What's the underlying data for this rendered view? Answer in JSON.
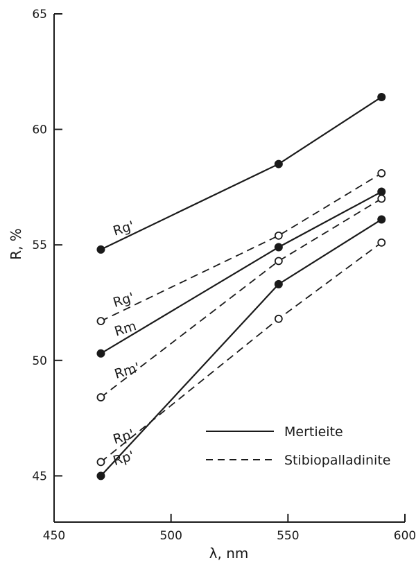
{
  "chart_data": {
    "type": "line",
    "xlabel": "λ, nm",
    "ylabel": "R, %",
    "xlim": [
      450,
      600
    ],
    "ylim": [
      43,
      65
    ],
    "xticks": [
      450,
      500,
      550,
      600
    ],
    "yticks": [
      45,
      50,
      55,
      60,
      65
    ],
    "grid": false,
    "legend_position": "bottom-right",
    "legend": [
      {
        "label": "Mertieite",
        "style": "solid"
      },
      {
        "label": "Stibiopalladinite",
        "style": "dashed"
      }
    ],
    "x": [
      470,
      546,
      590
    ],
    "series": [
      {
        "name": "Rg'",
        "group": "Mertieite",
        "style": "solid",
        "marker": "filled",
        "values": [
          54.8,
          58.5,
          61.4
        ]
      },
      {
        "name": "Rm",
        "group": "Mertieite",
        "style": "solid",
        "marker": "filled",
        "values": [
          50.3,
          54.9,
          57.3
        ]
      },
      {
        "name": "Rp'",
        "group": "Mertieite",
        "style": "solid",
        "marker": "filled",
        "values": [
          45.0,
          53.3,
          56.1
        ]
      },
      {
        "name": "Rg'",
        "group": "Stibiopalladinite",
        "style": "dashed",
        "marker": "open",
        "values": [
          51.7,
          55.4,
          58.1
        ]
      },
      {
        "name": "Rm'",
        "group": "Stibiopalladinite",
        "style": "dashed",
        "marker": "open",
        "values": [
          48.4,
          54.3,
          57.0
        ]
      },
      {
        "name": "Rp'",
        "group": "Stibiopalladinite",
        "style": "dashed",
        "marker": "open",
        "values": [
          45.6,
          51.8,
          55.1
        ]
      }
    ]
  }
}
